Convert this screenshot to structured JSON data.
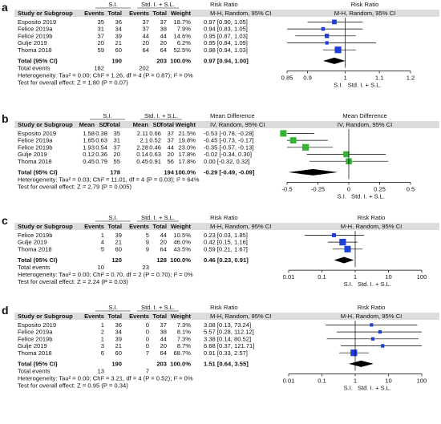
{
  "chart_data": [
    {
      "panel": "a",
      "type": "forest",
      "measure_header": [
        "Risk Ratio",
        "M-H, Random, 95% CI"
      ],
      "group_headers": [
        "S.I.",
        "Std. I. + S.L."
      ],
      "col_headers": [
        "Study or Subgroup",
        "Events",
        "Total",
        "Events",
        "Total",
        "Weight"
      ],
      "studies": [
        {
          "name": "Esposito 2019",
          "c1": "35",
          "c2": "36",
          "c3": "37",
          "c4": "37",
          "weight": "18.7%",
          "ci_text": "0.97 [0.90, 1.05]",
          "est": 0.97,
          "lo": 0.9,
          "hi": 1.05
        },
        {
          "name": "Felice 2019a",
          "c1": "31",
          "c2": "34",
          "c3": "37",
          "c4": "38",
          "weight": "7.9%",
          "ci_text": "0.94 [0.83, 1.05]",
          "est": 0.94,
          "lo": 0.83,
          "hi": 1.05
        },
        {
          "name": "Felice 2019b",
          "c1": "37",
          "c2": "39",
          "c3": "44",
          "c4": "44",
          "weight": "14.6%",
          "ci_text": "0.95 [0.87, 1.03]",
          "est": 0.95,
          "lo": 0.87,
          "hi": 1.03
        },
        {
          "name": "Gulje 2019",
          "c1": "20",
          "c2": "21",
          "c3": "20",
          "c4": "20",
          "weight": "6.2%",
          "ci_text": "0.95 [0.84, 1.09]",
          "est": 0.95,
          "lo": 0.84,
          "hi": 1.09
        },
        {
          "name": "Thoma 2018",
          "c1": "59",
          "c2": "60",
          "c3": "64",
          "c4": "64",
          "weight": "52.5%",
          "ci_text": "0.98 [0.94, 1.03]",
          "est": 0.98,
          "lo": 0.94,
          "hi": 1.03
        }
      ],
      "total": {
        "label": "Total (95% CI)",
        "c2": "190",
        "c4": "203",
        "weight": "100.0%",
        "ci_text": "0.97 [0.94, 1.00]",
        "est": 0.97,
        "lo": 0.94,
        "hi": 1.0
      },
      "total_events": {
        "label": "Total events",
        "c1": "182",
        "c3": "202"
      },
      "heterogeneity": "Heterogeneity: Tau² = 0.00; Chi² = 1.26, df = 4 (P = 0.87); I² = 0%",
      "overall_test": "Test for overall effect: Z = 1.80 (P = 0.07)",
      "axis": {
        "log": true,
        "min": 0.85,
        "max": 1.2,
        "ref": 1,
        "ticks": [
          0.85,
          0.9,
          1,
          1.1,
          1.2
        ],
        "tick_labels": [
          "0.85",
          "0.9",
          "1",
          "1.1",
          "1.2"
        ]
      },
      "favours": [
        "S.I.",
        "Std. I. + S.L."
      ]
    },
    {
      "panel": "b",
      "type": "forest",
      "measure_header": [
        "Mean Difference",
        "IV, Random, 95% CI"
      ],
      "group_headers": [
        "S.I.",
        "Std. I. + S.L."
      ],
      "col_headers": [
        "Study or Subgroup",
        "Mean",
        "SD",
        "Total",
        "Mean",
        "SD",
        "Total",
        "Weight"
      ],
      "studies": [
        {
          "name": "Esposito 2019",
          "c1": "1.58",
          "c2": "0.38",
          "c3": "35",
          "c4": "2.11",
          "c5": "0.66",
          "c6": "37",
          "weight": "21.5%",
          "ci_text": "-0.53 [-0.78, -0.28]",
          "est": -0.53,
          "lo": -0.78,
          "hi": -0.28
        },
        {
          "name": "Felice 2019a",
          "c1": "1.65",
          "c2": "0.63",
          "c3": "31",
          "c4": "2.1",
          "c5": "0.52",
          "c6": "37",
          "weight": "19.8%",
          "ci_text": "-0.45 [-0.73, -0.17]",
          "est": -0.45,
          "lo": -0.73,
          "hi": -0.17
        },
        {
          "name": "Felice 2019b",
          "c1": "1.93",
          "c2": "0.54",
          "c3": "37",
          "c4": "2.28",
          "c5": "0.46",
          "c6": "44",
          "weight": "23.0%",
          "ci_text": "-0.35 [-0.57, -0.13]",
          "est": -0.35,
          "lo": -0.57,
          "hi": -0.13
        },
        {
          "name": "Gulje 2019",
          "c1": "0.12",
          "c2": "0.36",
          "c3": "20",
          "c4": "0.14",
          "c5": "0.63",
          "c6": "20",
          "weight": "17.8%",
          "ci_text": "-0.02 [-0.34, 0.30]",
          "est": -0.02,
          "lo": -0.34,
          "hi": 0.3
        },
        {
          "name": "Thoma 2018",
          "c1": "0.45",
          "c2": "0.79",
          "c3": "55",
          "c4": "0.45",
          "c5": "0.91",
          "c6": "56",
          "weight": "17.8%",
          "ci_text": "0.00 [-0.32, 0.32]",
          "est": 0.0,
          "lo": -0.32,
          "hi": 0.32
        }
      ],
      "total": {
        "label": "Total (95% CI)",
        "c3": "178",
        "c6": "194",
        "weight": "100.0%",
        "ci_text": "-0.29 [-0.49, -0.09]",
        "est": -0.29,
        "lo": -0.49,
        "hi": -0.09
      },
      "heterogeneity": "Heterogeneity: Tau² = 0.03; Chi² = 11.01, df = 4 (P = 0.03); I² = 64%",
      "overall_test": "Test for overall effect: Z = 2.79 (P = 0.005)",
      "axis": {
        "log": false,
        "min": -0.5,
        "max": 0.5,
        "ref": 0,
        "ticks": [
          -0.5,
          -0.25,
          0,
          0.25,
          0.5
        ],
        "tick_labels": [
          "-0.5",
          "-0.25",
          "0",
          "0.25",
          "0.5"
        ]
      },
      "favours": [
        "S.I.",
        "Std. I. + S.L."
      ]
    },
    {
      "panel": "c",
      "type": "forest",
      "measure_header": [
        "Risk Ratio",
        "M-H, Random, 95% CI"
      ],
      "group_headers": [
        "S.I.",
        "Std. I. + S.L."
      ],
      "col_headers": [
        "Study or Subgroup",
        "Events",
        "Total",
        "Events",
        "Total",
        "Weight"
      ],
      "studies": [
        {
          "name": "Felice 2019b",
          "c1": "1",
          "c2": "39",
          "c3": "5",
          "c4": "44",
          "weight": "10.5%",
          "ci_text": "0.23 [0.03, 1.85]",
          "est": 0.23,
          "lo": 0.03,
          "hi": 1.85
        },
        {
          "name": "Gulje 2019",
          "c1": "4",
          "c2": "21",
          "c3": "9",
          "c4": "20",
          "weight": "46.0%",
          "ci_text": "0.42 [0.15, 1.16]",
          "est": 0.42,
          "lo": 0.15,
          "hi": 1.16
        },
        {
          "name": "Thoma 2018",
          "c1": "5",
          "c2": "60",
          "c3": "9",
          "c4": "64",
          "weight": "43.5%",
          "ci_text": "0.59 [0.21, 1.67]",
          "est": 0.59,
          "lo": 0.21,
          "hi": 1.67
        }
      ],
      "total": {
        "label": "Total (95% CI)",
        "c2": "120",
        "c4": "128",
        "weight": "100.0%",
        "ci_text": "0.46 [0.23, 0.91]",
        "est": 0.46,
        "lo": 0.23,
        "hi": 0.91
      },
      "total_events": {
        "label": "Total events",
        "c1": "10",
        "c3": "23"
      },
      "heterogeneity": "Heterogeneity: Tau² = 0.00; Chi² = 0.70, df = 2 (P = 0.70); I² = 0%",
      "overall_test": "Test for overall effect: Z = 2.24 (P = 0.03)",
      "axis": {
        "log": true,
        "min": 0.01,
        "max": 100,
        "ref": 1,
        "ticks": [
          0.01,
          0.1,
          1,
          10,
          100
        ],
        "tick_labels": [
          "0.01",
          "0.1",
          "1",
          "10",
          "100"
        ]
      },
      "favours": [
        "S.I.",
        "Std. I. + S.L."
      ]
    },
    {
      "panel": "d",
      "type": "forest",
      "measure_header": [
        "Risk Ratio",
        "M-H, Random, 95% CI"
      ],
      "group_headers": [
        "S.I.",
        "Std. I. + S.L."
      ],
      "col_headers": [
        "Study or Subgroup",
        "Events",
        "Total",
        "Events",
        "Total",
        "Weight"
      ],
      "studies": [
        {
          "name": "Esposito 2019",
          "c1": "1",
          "c2": "36",
          "c3": "0",
          "c4": "37",
          "weight": "7.3%",
          "ci_text": "3.08 [0.13, 73.24]",
          "est": 3.08,
          "lo": 0.13,
          "hi": 73.24
        },
        {
          "name": "Felice 2019a",
          "c1": "2",
          "c2": "34",
          "c3": "0",
          "c4": "38",
          "weight": "8.1%",
          "ci_text": "5.57 [0.28, 112.12]",
          "est": 5.57,
          "lo": 0.28,
          "hi": 112.12
        },
        {
          "name": "Felice 2019b",
          "c1": "1",
          "c2": "39",
          "c3": "0",
          "c4": "44",
          "weight": "7.3%",
          "ci_text": "3.38 [0.14, 80.52]",
          "est": 3.38,
          "lo": 0.14,
          "hi": 80.52
        },
        {
          "name": "Gulje 2019",
          "c1": "3",
          "c2": "21",
          "c3": "0",
          "c4": "20",
          "weight": "8.7%",
          "ci_text": "6.68 [0.37, 121.71]",
          "est": 6.68,
          "lo": 0.37,
          "hi": 121.71
        },
        {
          "name": "Thoma 2018",
          "c1": "6",
          "c2": "60",
          "c3": "7",
          "c4": "64",
          "weight": "68.7%",
          "ci_text": "0.91 [0.33, 2.57]",
          "est": 0.91,
          "lo": 0.33,
          "hi": 2.57
        }
      ],
      "total": {
        "label": "Total (95% CI)",
        "c2": "190",
        "c4": "203",
        "weight": "100.0%",
        "ci_text": "1.51 [0.64, 3.55]",
        "est": 1.51,
        "lo": 0.64,
        "hi": 3.55
      },
      "total_events": {
        "label": "Total events",
        "c1": "13",
        "c3": "7"
      },
      "heterogeneity": "Heterogeneity: Tau² = 0.00; Chi² = 3.21, df = 4 (P = 0.52); I² = 0%",
      "overall_test": "Test for overall effect: Z = 0.95 (P = 0.34)",
      "axis": {
        "log": true,
        "min": 0.01,
        "max": 100,
        "ref": 1,
        "ticks": [
          0.01,
          0.1,
          1,
          10,
          100
        ],
        "tick_labels": [
          "0.01",
          "0.1",
          "1",
          "10",
          "100"
        ]
      },
      "favours": [
        "S.I.",
        "Std. I. + S.L."
      ]
    }
  ],
  "colors": {
    "header_band": "#dcdcdc",
    "line": "#000000",
    "marker_blue": "#1f3fd6",
    "marker_green": "#33b233",
    "text": "#111111"
  }
}
